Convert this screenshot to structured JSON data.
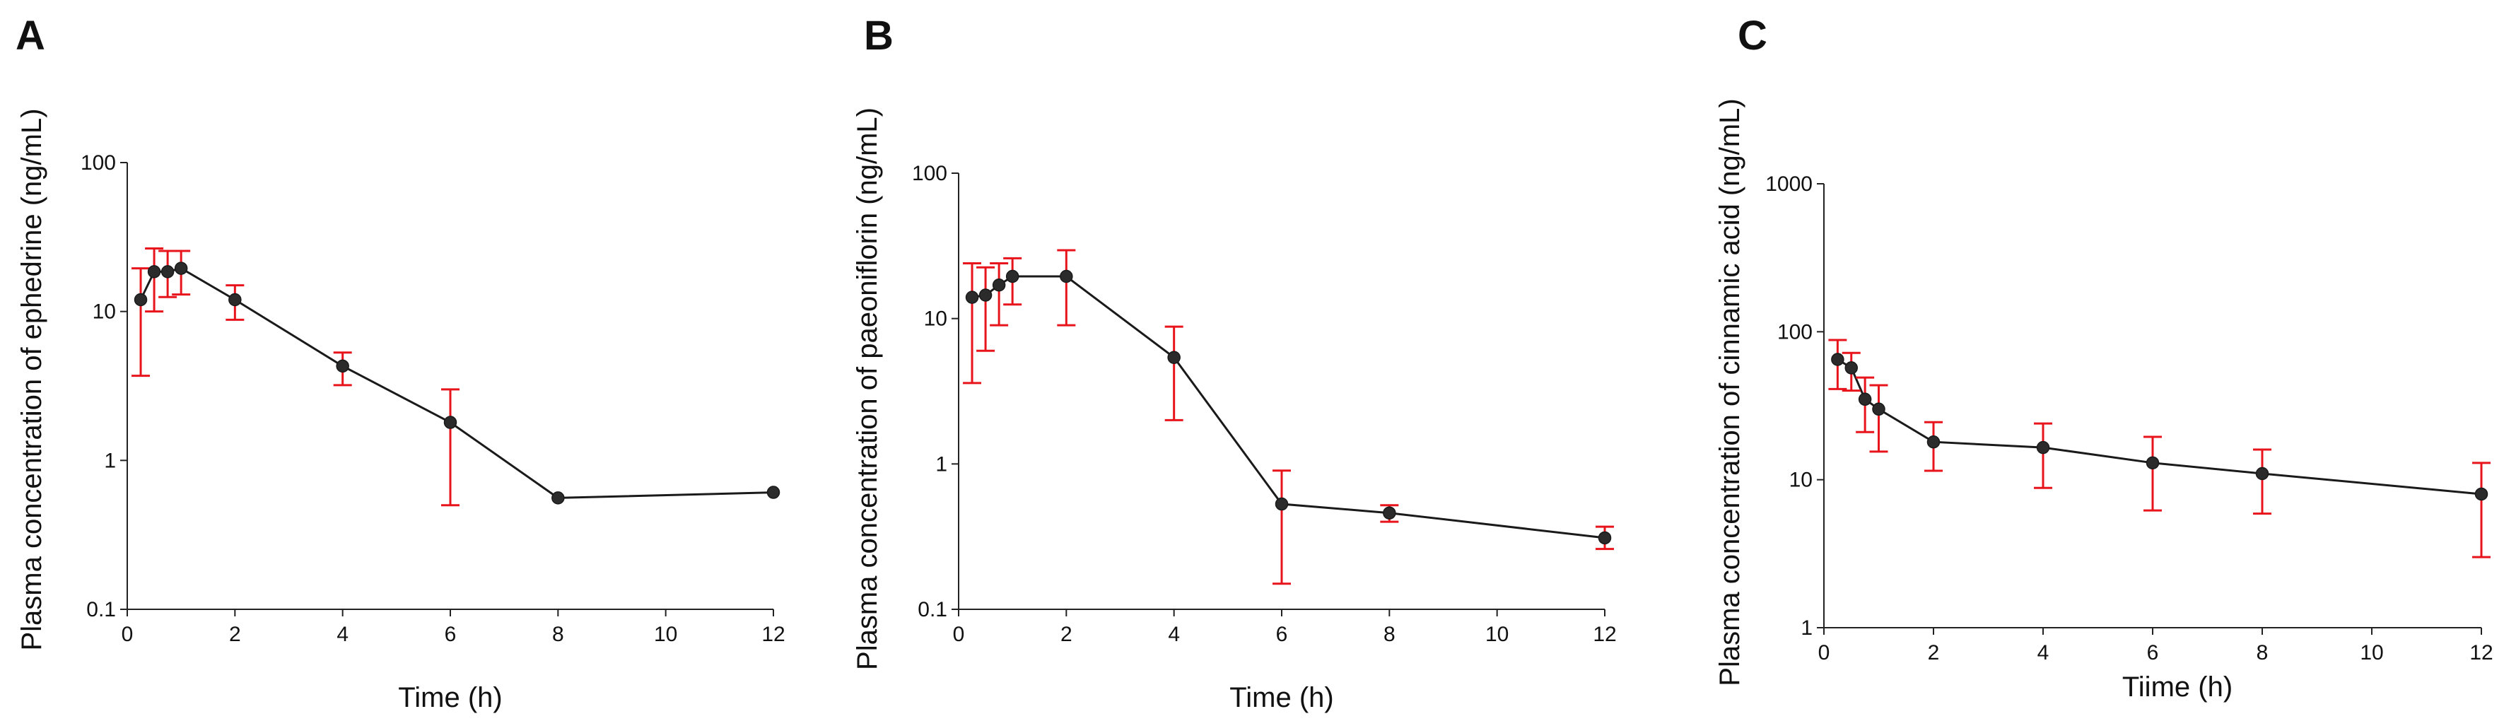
{
  "figure": {
    "panels": [
      "A",
      "B",
      "C"
    ]
  },
  "colors": {
    "line": "#1a1a1a",
    "marker": "#2b2b2b",
    "error_bar": "#e8141c",
    "axis": "#222222"
  },
  "chart_data": [
    {
      "type": "line",
      "panel_label": "A",
      "title": "",
      "xlabel": "Time (h)",
      "ylabel": "Plasma concentration of ephedrine (ng/mL)",
      "xlim": [
        0,
        12
      ],
      "ylim": [
        0.1,
        100
      ],
      "yscale": "log",
      "xticks": [
        "0",
        "2",
        "4",
        "6",
        "8",
        "10",
        "12"
      ],
      "yticks": [
        "0.1",
        "1",
        "10",
        "100"
      ],
      "grid": false,
      "series": [
        {
          "name": "ephedrine",
          "x": [
            0.25,
            0.5,
            0.75,
            1,
            2,
            4,
            6,
            8,
            12
          ],
          "y": [
            12,
            18.5,
            18.5,
            19.5,
            12,
            4.3,
            1.8,
            0.56,
            0.61
          ],
          "err_low": [
            3.7,
            10,
            12.5,
            13,
            8.8,
            3.2,
            0.5,
            null,
            null
          ],
          "err_high": [
            19.5,
            26.5,
            25.5,
            25.5,
            15,
            5.3,
            3.0,
            null,
            null
          ]
        }
      ]
    },
    {
      "type": "line",
      "panel_label": "B",
      "title": "",
      "xlabel": "Time (h)",
      "ylabel": "Plasma concentration of paeoniflorin (ng/mL)",
      "xlim": [
        0,
        12
      ],
      "ylim": [
        0.1,
        100
      ],
      "yscale": "log",
      "xticks": [
        "0",
        "2",
        "4",
        "6",
        "8",
        "10",
        "12"
      ],
      "yticks": [
        "0.1",
        "1",
        "10",
        "100"
      ],
      "grid": false,
      "series": [
        {
          "name": "paeoniflorin",
          "x": [
            0.25,
            0.5,
            0.75,
            1,
            2,
            4,
            6,
            8,
            12
          ],
          "y": [
            14,
            14.5,
            17,
            19.5,
            19.5,
            5.4,
            0.53,
            0.46,
            0.31
          ],
          "err_low": [
            3.6,
            6,
            9,
            12.5,
            9,
            2.0,
            0.15,
            0.4,
            0.26
          ],
          "err_high": [
            24,
            22.5,
            24,
            26,
            29.5,
            8.8,
            0.9,
            0.52,
            0.37
          ]
        }
      ]
    },
    {
      "type": "line",
      "panel_label": "C",
      "title": "",
      "xlabel": "Tiime (h)",
      "ylabel": "Plasma concentration of cinnamic acid (ng/mL)",
      "xlim": [
        0,
        12
      ],
      "ylim": [
        1,
        1000
      ],
      "yscale": "log",
      "xticks": [
        "0",
        "2",
        "4",
        "6",
        "8",
        "10",
        "12"
      ],
      "yticks": [
        "1",
        "10",
        "100",
        "1000"
      ],
      "grid": false,
      "series": [
        {
          "name": "cinnamic acid",
          "x": [
            0.25,
            0.5,
            0.75,
            1,
            2,
            4,
            6,
            8,
            12
          ],
          "y": [
            65,
            57,
            35,
            30,
            18,
            16.5,
            13,
            11,
            8
          ],
          "err_low": [
            41,
            40,
            21,
            15.5,
            11.5,
            8.8,
            6.2,
            5.9,
            3.0
          ],
          "err_high": [
            88,
            72,
            49,
            43.5,
            24.5,
            24,
            19.5,
            16,
            13
          ]
        }
      ]
    }
  ]
}
